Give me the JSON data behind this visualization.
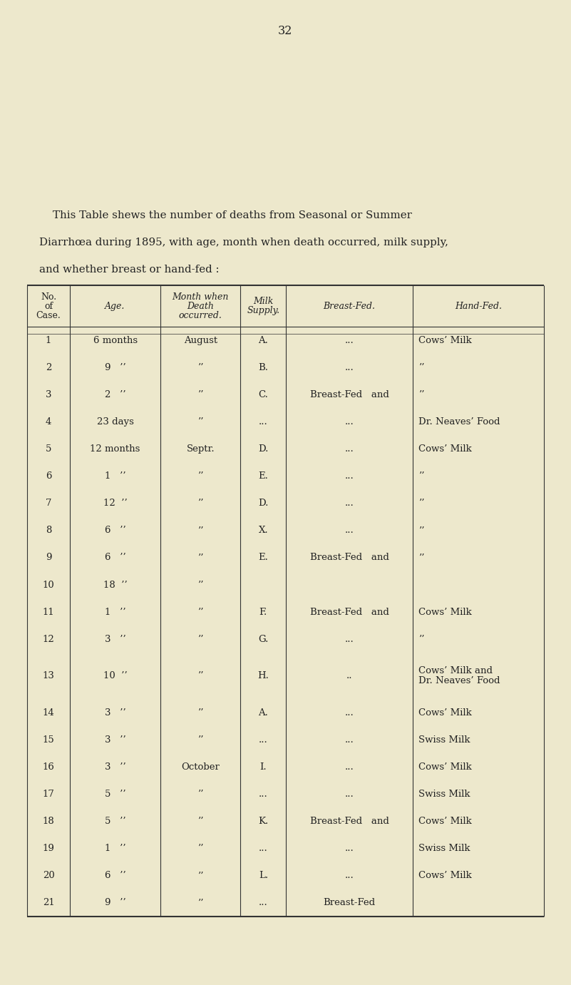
{
  "page_number": "32",
  "bg_color": "#ede8cc",
  "intro_text_lines": [
    "    This Table shews the number of deaths from Seasonal or Summer",
    "Diarrhœa during 1895, with age, month when death occurred, milk supply,",
    "and whether breast or hand-fed :"
  ],
  "col_headers": [
    "No.\nof\nCase.",
    "Age.",
    "Month when\nDeath\noccurred.",
    "Milk\nSupply.",
    "Breast-Fed.",
    "Hand-Fed."
  ],
  "rows": [
    [
      "1",
      "6 months",
      "August",
      "A.",
      "...",
      "Cows’ Milk"
    ],
    [
      "2",
      "9   ’’",
      "’’",
      "B.",
      "...",
      "’’"
    ],
    [
      "3",
      "2   ’’",
      "’’",
      "C.",
      "Breast-Fed   and",
      "’’"
    ],
    [
      "4",
      "23 days",
      "’’",
      "...",
      "...",
      "Dr. Neaves’ Food"
    ],
    [
      "5",
      "12 months",
      "Septr.",
      "D.",
      "...",
      "Cows’ Milk"
    ],
    [
      "6",
      "1   ’’",
      "’’",
      "E.",
      "...",
      "’’"
    ],
    [
      "7",
      "12  ’’",
      "’’",
      "D.",
      "...",
      "’’"
    ],
    [
      "8",
      "6   ’’",
      "’’",
      "X.",
      "...",
      "’’"
    ],
    [
      "9",
      "6   ’’",
      "’’",
      "E.",
      "Breast-Fed   and",
      "’’"
    ],
    [
      "10",
      "18  ’’",
      "’’",
      "",
      "",
      ""
    ],
    [
      "11",
      "1   ’’",
      "’’",
      "F.",
      "Breast-Fed   and",
      "Cows’ Milk"
    ],
    [
      "12",
      "3   ’’",
      "’’",
      "G.",
      "...",
      "’’"
    ],
    [
      "13",
      "10  ’’",
      "’’",
      "H.",
      "..",
      "Cows’ Milk and\nDr. Neaves’ Food"
    ],
    [
      "14",
      "3   ’’",
      "’’",
      "A.",
      "...",
      "Cows’ Milk"
    ],
    [
      "15",
      "3   ’’",
      "’’",
      "...",
      "...",
      "Swiss Milk"
    ],
    [
      "16",
      "3   ’’",
      "October",
      "I.",
      "...",
      "Cows’ Milk"
    ],
    [
      "17",
      "5   ’’",
      "’’",
      "...",
      "...",
      "Swiss Milk"
    ],
    [
      "18",
      "5   ’’",
      "’’",
      "K.",
      "Breast-Fed   and",
      "Cows’ Milk"
    ],
    [
      "19",
      "1   ’’",
      "’’",
      "...",
      "...",
      "Swiss Milk"
    ],
    [
      "20",
      "6   ’’",
      "’’",
      "L.",
      "...",
      "Cows’ Milk"
    ],
    [
      "21",
      "9   ’’",
      "’’",
      "...",
      "Breast-Fed",
      ""
    ]
  ],
  "row_heights": [
    1,
    1,
    1,
    1,
    1,
    1,
    1,
    1,
    1,
    1,
    1,
    1,
    1.7,
    1,
    1,
    1,
    1,
    1,
    1,
    1,
    1
  ],
  "text_color": "#222222",
  "line_color": "#333333",
  "font_size_body": 9.5,
  "font_size_header": 9.0,
  "font_size_intro": 10.8,
  "font_size_page": 11.5
}
